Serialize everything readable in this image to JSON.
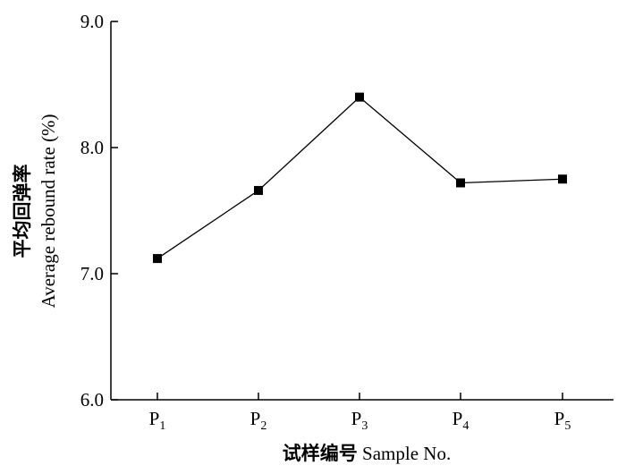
{
  "chart_data": {
    "type": "line",
    "title": "",
    "xlabel": "试样编号 Sample No.",
    "ylabel_cn": "平均回弹率",
    "ylabel_en": "Average rebound rate (%)",
    "categories": [
      {
        "base": "P",
        "sub": "1"
      },
      {
        "base": "P",
        "sub": "2"
      },
      {
        "base": "P",
        "sub": "3"
      },
      {
        "base": "P",
        "sub": "4"
      },
      {
        "base": "P",
        "sub": "5"
      }
    ],
    "series": [
      {
        "values": [
          7.12,
          7.66,
          8.4,
          7.72,
          7.75
        ],
        "marker": "square",
        "color": "#000000"
      }
    ],
    "ylim": [
      6.0,
      9.0
    ],
    "yticks": [
      6.0,
      7.0,
      8.0,
      9.0
    ],
    "ytick_labels": [
      "6.0",
      "7.0",
      "8.0",
      "9.0"
    ],
    "grid": false
  }
}
